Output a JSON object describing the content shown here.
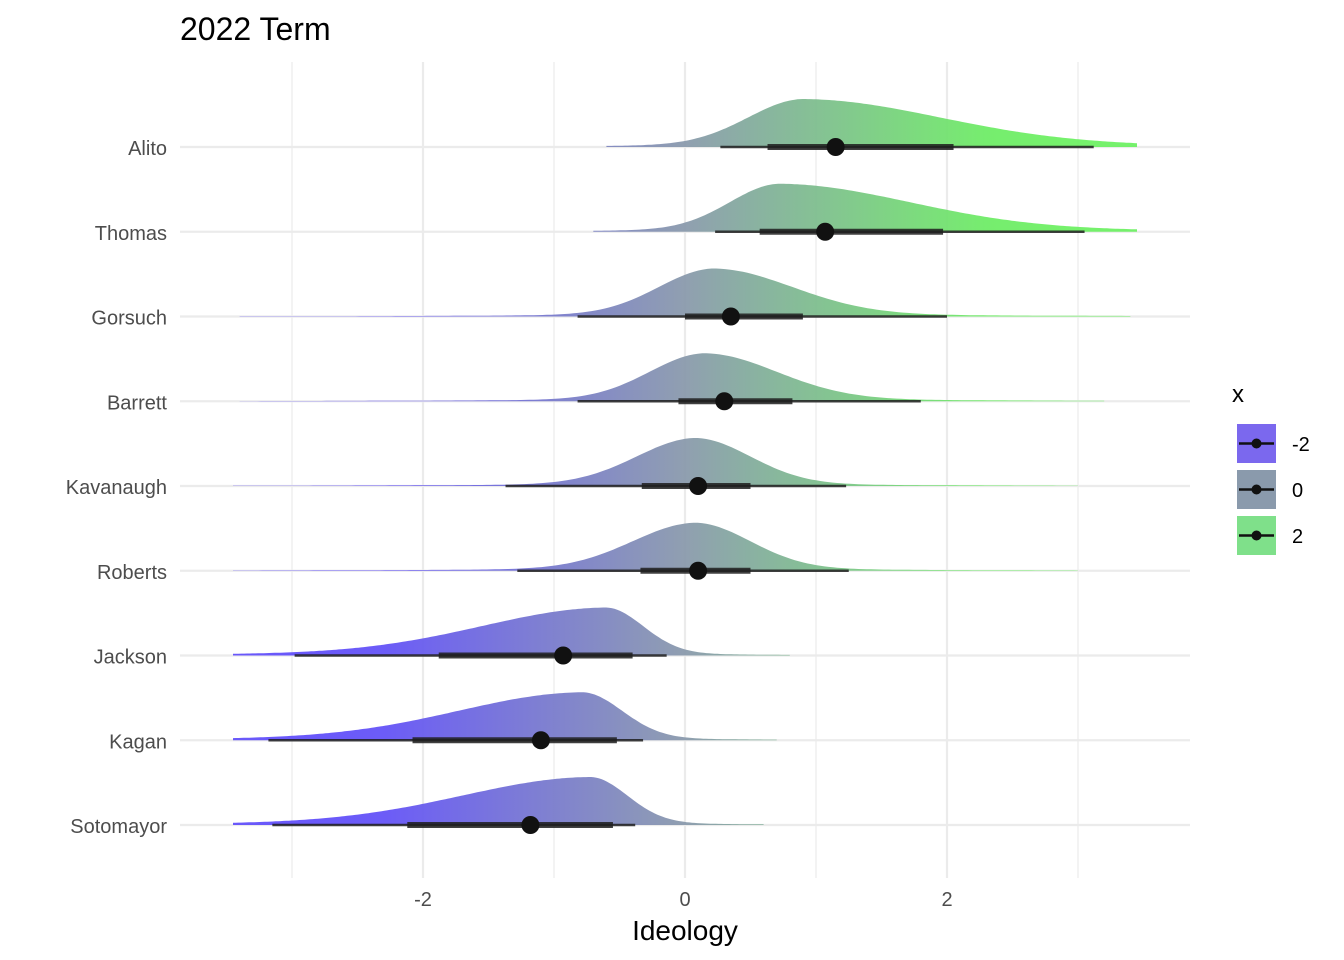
{
  "chart_data": {
    "type": "ridgeline",
    "title": "2022 Term",
    "xlabel": "Ideology",
    "ylabel": "",
    "xlim": [
      -3.45,
      3.45
    ],
    "xticks": [
      -2,
      0,
      2
    ],
    "xtick_labels": [
      "-2",
      "0",
      "2"
    ],
    "grid": true,
    "legend": {
      "title": "x",
      "placement": "right",
      "items": [
        {
          "label": "-2",
          "color": "#7B68EE"
        },
        {
          "label": "0",
          "color": "#8A9AAC"
        },
        {
          "label": "2",
          "color": "#7FE08A"
        }
      ]
    },
    "justices": [
      {
        "name": "Alito",
        "median": 1.15,
        "inner": [
          0.63,
          2.05
        ],
        "outer": [
          0.27,
          3.12
        ],
        "mode": 0.9,
        "sd_left": 0.42,
        "sd_right": 1.05,
        "max": 3.45,
        "min": -0.6
      },
      {
        "name": "Thomas",
        "median": 1.07,
        "inner": [
          0.57,
          1.97
        ],
        "outer": [
          0.23,
          3.05
        ],
        "mode": 0.72,
        "sd_left": 0.38,
        "sd_right": 1.0,
        "max": 3.45,
        "min": -0.7
      },
      {
        "name": "Gorsuch",
        "median": 0.35,
        "inner": [
          0.0,
          0.9
        ],
        "outer": [
          -0.82,
          2.0
        ],
        "mode": 0.22,
        "sd_left": 0.42,
        "sd_right": 0.6,
        "max": 3.4,
        "min": -3.4
      },
      {
        "name": "Barrett",
        "median": 0.3,
        "inner": [
          -0.05,
          0.82
        ],
        "outer": [
          -0.82,
          1.8
        ],
        "mode": 0.15,
        "sd_left": 0.42,
        "sd_right": 0.55,
        "max": 3.2,
        "min": -3.4
      },
      {
        "name": "Kavanaugh",
        "median": 0.1,
        "inner": [
          -0.33,
          0.5
        ],
        "outer": [
          -1.37,
          1.23
        ],
        "mode": 0.08,
        "sd_left": 0.45,
        "sd_right": 0.42,
        "max": 3.0,
        "min": -3.45
      },
      {
        "name": "Roberts",
        "median": 0.1,
        "inner": [
          -0.34,
          0.5
        ],
        "outer": [
          -1.28,
          1.25
        ],
        "mode": 0.08,
        "sd_left": 0.48,
        "sd_right": 0.42,
        "max": 3.0,
        "min": -3.45
      },
      {
        "name": "Jackson",
        "median": -0.93,
        "inner": [
          -1.88,
          -0.4
        ],
        "outer": [
          -2.98,
          -0.14
        ],
        "mode": -0.6,
        "sd_left": 0.95,
        "sd_right": 0.28,
        "max": 0.8,
        "min": -3.45
      },
      {
        "name": "Kagan",
        "median": -1.1,
        "inner": [
          -2.08,
          -0.52
        ],
        "outer": [
          -3.18,
          -0.32
        ],
        "mode": -0.78,
        "sd_left": 0.95,
        "sd_right": 0.3,
        "max": 0.7,
        "min": -3.45
      },
      {
        "name": "Sotomayor",
        "median": -1.18,
        "inner": [
          -2.12,
          -0.55
        ],
        "outer": [
          -3.15,
          -0.38
        ],
        "mode": -0.72,
        "sd_left": 0.98,
        "sd_right": 0.28,
        "max": 0.6,
        "min": -3.45
      }
    ]
  }
}
